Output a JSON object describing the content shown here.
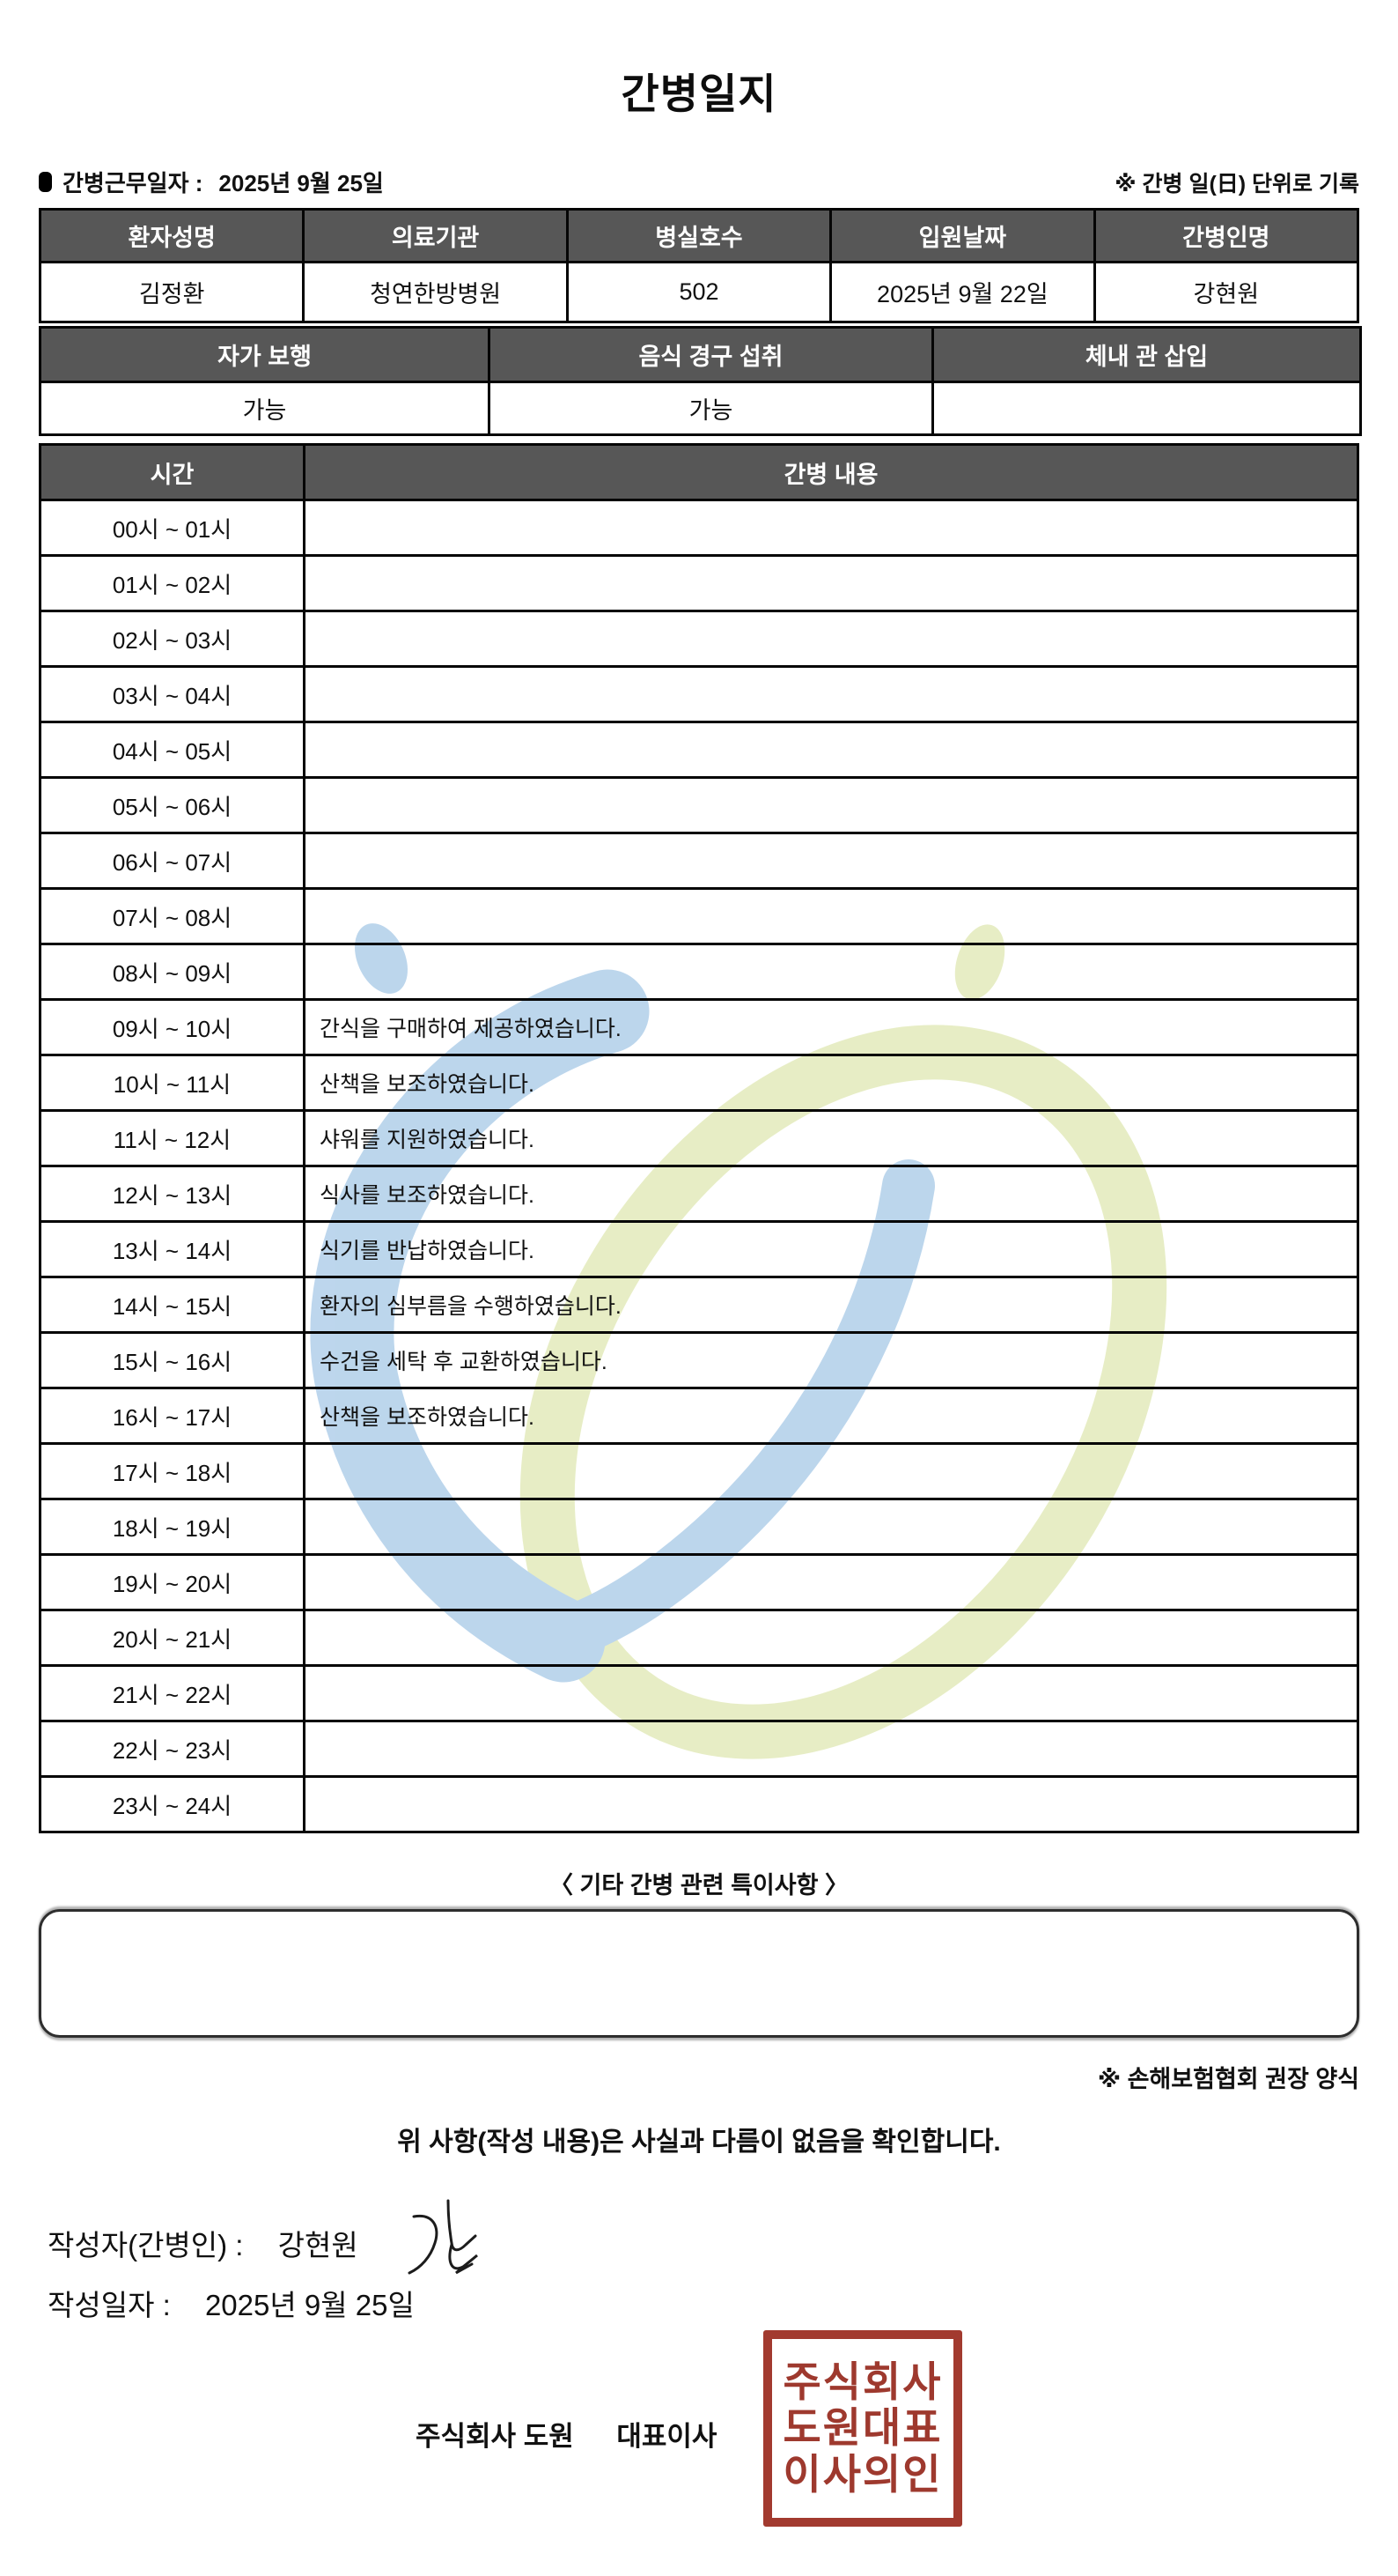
{
  "title": "간병일지",
  "meta": {
    "work_date_label": "간병근무일자  :",
    "work_date": "2025년 9월 25일",
    "unit_note": "※ 간병 일(日) 단위로 기록"
  },
  "patient_table": {
    "headers": [
      "환자성명",
      "의료기관",
      "병실호수",
      "입원날짜",
      "간병인명"
    ],
    "values": [
      "김정환",
      "청연한방병원",
      "502",
      "2025년 9월 22일",
      "강현원"
    ]
  },
  "status_table": {
    "headers": [
      "자가 보행",
      "음식 경구 섭취",
      "체내 관 삽입"
    ],
    "values": [
      "가능",
      "가능",
      ""
    ]
  },
  "care_log": {
    "time_header": "시간",
    "content_header": "간병 내용",
    "rows": [
      {
        "time": "00시 ~ 01시",
        "content": ""
      },
      {
        "time": "01시 ~ 02시",
        "content": ""
      },
      {
        "time": "02시 ~ 03시",
        "content": ""
      },
      {
        "time": "03시 ~ 04시",
        "content": ""
      },
      {
        "time": "04시 ~ 05시",
        "content": ""
      },
      {
        "time": "05시 ~ 06시",
        "content": ""
      },
      {
        "time": "06시 ~ 07시",
        "content": ""
      },
      {
        "time": "07시 ~ 08시",
        "content": ""
      },
      {
        "time": "08시 ~ 09시",
        "content": ""
      },
      {
        "time": "09시 ~ 10시",
        "content": "간식을 구매하여 제공하였습니다."
      },
      {
        "time": "10시 ~ 11시",
        "content": "산책을 보조하였습니다."
      },
      {
        "time": "11시 ~ 12시",
        "content": "샤워를 지원하였습니다."
      },
      {
        "time": "12시 ~ 13시",
        "content": "식사를 보조하였습니다."
      },
      {
        "time": "13시 ~ 14시",
        "content": "식기를 반납하였습니다."
      },
      {
        "time": "14시 ~ 15시",
        "content": "환자의 심부름을 수행하였습니다."
      },
      {
        "time": "15시 ~ 16시",
        "content": "수건을 세탁 후 교환하였습니다."
      },
      {
        "time": "16시 ~ 17시",
        "content": "산책을 보조하였습니다."
      },
      {
        "time": "17시 ~ 18시",
        "content": ""
      },
      {
        "time": "18시 ~ 19시",
        "content": ""
      },
      {
        "time": "19시 ~ 20시",
        "content": ""
      },
      {
        "time": "20시 ~ 21시",
        "content": ""
      },
      {
        "time": "21시 ~ 22시",
        "content": ""
      },
      {
        "time": "22시 ~ 23시",
        "content": ""
      },
      {
        "time": "23시 ~ 24시",
        "content": ""
      }
    ]
  },
  "notes": {
    "heading": "〈 기타 간병 관련 특이사항 〉",
    "content": "",
    "form_note": "※ 손해보험협회 권장 양식"
  },
  "confirmation": {
    "statement": "위 사항(작성 내용)은 사실과 다름이 없음을 확인합니다.",
    "writer_label": "작성자(간병인) :",
    "writer_name": "강현원",
    "date_label": "작성일자 :",
    "date_value": "2025년 9월 25일"
  },
  "company": {
    "name_part": "주식회사 도원",
    "title_part": "대표이사",
    "stamp_lines": [
      "주식회사",
      "도원대표",
      "이사의인"
    ]
  },
  "colors": {
    "table_header_bg": "#575757",
    "table_border": "#050505",
    "stamp_red": "#a23a2f",
    "watermark_blue": "#b9d4ec",
    "watermark_green": "#e6edc2"
  }
}
